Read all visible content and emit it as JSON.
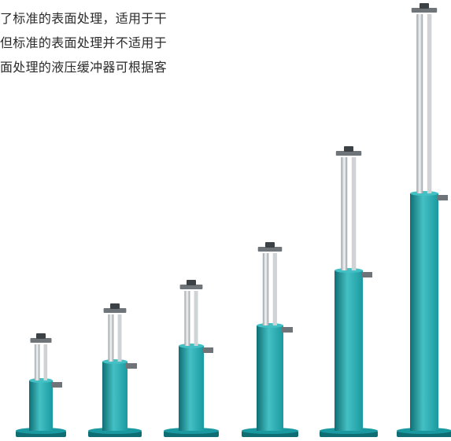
{
  "text": {
    "lines": [
      "了标准的表面处理，适用于干",
      "但标准的表面处理并不适用于",
      "面处理的液压缓冲器可根据客"
    ]
  },
  "colors": {
    "cylinder": "#1a9aa0",
    "cylinder_highlight": "#43c0c4",
    "cylinder_shadow": "#0f6e73",
    "rod": "#cfd3d6",
    "rod_shadow": "#9aa0a4",
    "bracket": "#6f7478",
    "cap": "#3c4145"
  },
  "buffers": [
    {
      "name": "buffer-1"
    },
    {
      "name": "buffer-2"
    },
    {
      "name": "buffer-3"
    },
    {
      "name": "buffer-4"
    },
    {
      "name": "buffer-5"
    },
    {
      "name": "buffer-6"
    }
  ]
}
